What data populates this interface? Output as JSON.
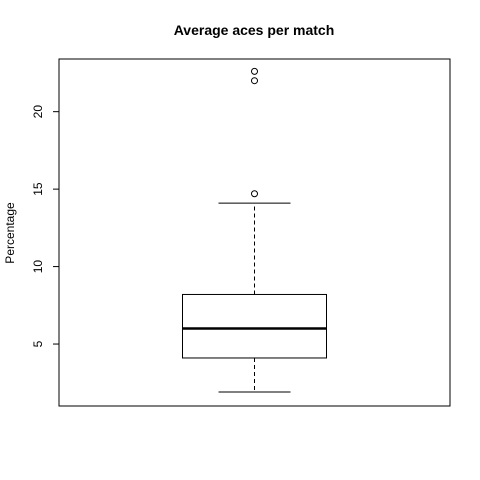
{
  "chart_data": {
    "type": "box",
    "title": "Average aces per match",
    "xlabel": "",
    "ylabel": "Percentage",
    "ylim": [
      1.0,
      23.4
    ],
    "yticks": [
      5,
      10,
      15,
      20
    ],
    "ytick_labels": [
      "5",
      "10",
      "15",
      "20"
    ],
    "boxes": [
      {
        "whisker_low": 1.9,
        "q1": 4.1,
        "median": 6.0,
        "q3": 8.2,
        "whisker_high": 14.1,
        "outliers": [
          14.7,
          22.0,
          22.6
        ]
      }
    ],
    "grid": false,
    "colors": {
      "box": "#000000",
      "background": "#ffffff"
    }
  }
}
